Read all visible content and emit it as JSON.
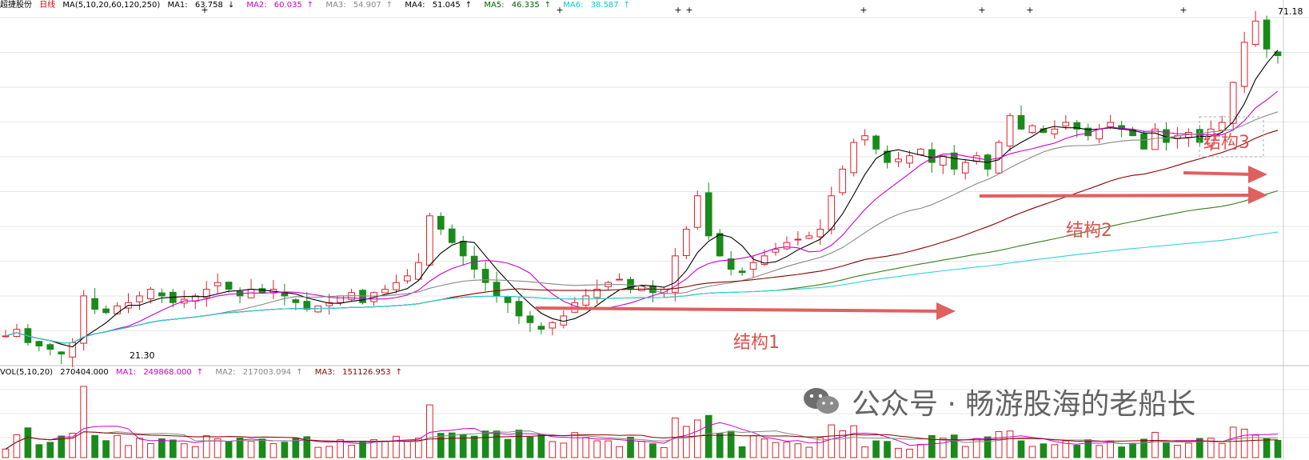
{
  "header": {
    "stock_name": "超捷股份",
    "period": "日线",
    "ma_params": "MA(5,10,20,60,120,250)",
    "ma": [
      {
        "label": "MA1:",
        "value": "63.758",
        "arrow": "↓",
        "color": "#000000"
      },
      {
        "label": "MA2:",
        "value": "60.035",
        "arrow": "↑",
        "color": "#cc00cc"
      },
      {
        "label": "MA3:",
        "value": "54.907",
        "arrow": "↑",
        "color": "#888888"
      },
      {
        "label": "MA4:",
        "value": "51.045",
        "arrow": "↑",
        "color": "#8b0000"
      },
      {
        "label": "MA5:",
        "value": "46.335",
        "arrow": "↑",
        "color": "#006400"
      },
      {
        "label": "MA6:",
        "value": "38.587",
        "arrow": "↑",
        "color": "#00cccc"
      }
    ]
  },
  "volume_header": {
    "params": "VOL(5,10,20)",
    "value": "270404.000",
    "ma": [
      {
        "label": "MA1:",
        "value": "249868.000",
        "arrow": "↑",
        "color": "#cc00cc"
      },
      {
        "label": "MA2:",
        "value": "217003.094",
        "arrow": "↑",
        "color": "#888888"
      },
      {
        "label": "MA3:",
        "value": "151126.953",
        "arrow": "↑",
        "color": "#8b0000"
      }
    ]
  },
  "annotations": {
    "structure1": "结构1",
    "structure2": "结构2",
    "structure3": "结构3",
    "low_label": "21.30",
    "high_label": "71.18"
  },
  "watermark": "公众号 · 畅游股海的老船长",
  "colors": {
    "up": "#e0202a",
    "down": "#1a8a1a",
    "arrow": "#e06060",
    "grid": "#e6e6e6",
    "ma1": "#000000",
    "ma2": "#cc00cc",
    "ma3": "#888888",
    "ma4": "#8b0000",
    "ma5": "#3a7d20",
    "ma6": "#30d0e0"
  },
  "chart_data": {
    "type": "candlestick",
    "price_low": 21.3,
    "price_high": 71.18,
    "close_series": [
      24,
      25,
      23,
      22.5,
      22,
      21.3,
      23,
      30,
      28,
      27.5,
      28.5,
      29,
      30,
      31,
      30,
      29,
      29.5,
      30,
      31,
      32,
      31,
      30,
      31,
      30.5,
      31,
      30,
      29,
      28,
      28.5,
      29,
      30,
      30.5,
      29,
      30.5,
      31,
      32,
      33,
      35,
      42,
      40,
      38,
      36,
      34,
      32,
      30,
      29,
      27,
      26,
      25,
      26,
      27,
      29,
      30,
      31,
      32,
      32.5,
      31,
      31.5,
      30.5,
      31,
      36,
      40,
      45,
      39,
      36,
      34,
      33.5,
      35,
      36,
      37,
      38,
      38.5,
      39,
      40,
      45,
      49,
      53,
      54,
      52,
      50,
      50.5,
      51,
      52,
      50,
      51,
      49,
      50,
      51,
      49,
      53,
      57,
      55,
      55.5,
      54.5,
      55,
      56,
      55,
      54,
      55,
      56,
      55,
      54,
      52,
      55,
      53,
      54,
      54.5,
      53,
      55,
      56,
      62,
      68,
      71.18,
      67,
      66
    ],
    "ma_levels": {
      "MA1": 63.758,
      "MA2": 60.035,
      "MA3": 54.907,
      "MA4": 51.045,
      "MA5": 46.335,
      "MA6": 38.587
    },
    "volume_levels": {
      "VOL": 270404.0,
      "MA1": 249868.0,
      "MA2": 217003.094,
      "MA3": 151126.953
    }
  }
}
